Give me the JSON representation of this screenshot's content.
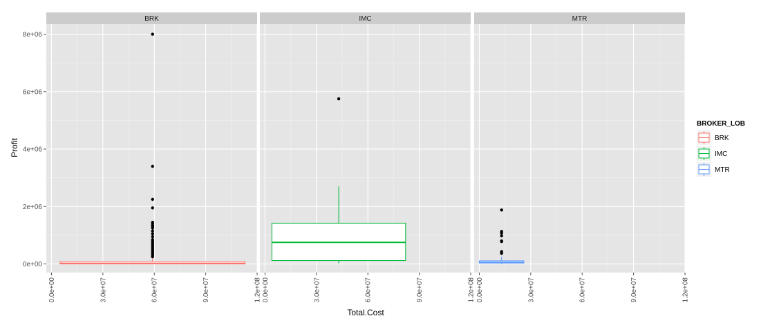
{
  "chart_data": {
    "type": "box",
    "xlabel": "Total.Cost",
    "ylabel": "Profit",
    "xlim": [
      -3000000,
      120000000
    ],
    "ylim": [
      -300000,
      8350000
    ],
    "x_ticks": [
      {
        "value": 0,
        "label": "0.0e+00"
      },
      {
        "value": 30000000,
        "label": "3.0e+07"
      },
      {
        "value": 60000000,
        "label": "6.0e+07"
      },
      {
        "value": 90000000,
        "label": "9.0e+07"
      },
      {
        "value": 120000000,
        "label": "1.2e+08"
      }
    ],
    "y_ticks": [
      {
        "value": 0,
        "label": "0e+00"
      },
      {
        "value": 2000000,
        "label": "2e+06"
      },
      {
        "value": 4000000,
        "label": "4e+06"
      },
      {
        "value": 6000000,
        "label": "6e+06"
      },
      {
        "value": 8000000,
        "label": "8e+06"
      }
    ],
    "legend": {
      "title": "BROKER_LOB",
      "position": "right",
      "items": [
        {
          "label": "BRK",
          "color": "#F8766D"
        },
        {
          "label": "IMC",
          "color": "#00BA38"
        },
        {
          "label": "MTR",
          "color": "#619CFF"
        }
      ]
    },
    "panels": [
      {
        "strip": "BRK",
        "color": "#F8766D",
        "box": {
          "xmin": 5000000,
          "xmax": 113000000,
          "xcenter": 59000000,
          "q1": 0,
          "median": 20000,
          "q3": 90000,
          "whisker_low": 0,
          "whisker_high": 200000
        },
        "outliers": [
          {
            "x": 59000000,
            "y": 8000000
          },
          {
            "x": 59000000,
            "y": 3400000
          },
          {
            "x": 59000000,
            "y": 2250000
          },
          {
            "x": 59000000,
            "y": 1950000
          },
          {
            "x": 59000000,
            "y": 1450000
          },
          {
            "x": 59000000,
            "y": 1400000
          },
          {
            "x": 59000000,
            "y": 1350000
          },
          {
            "x": 59000000,
            "y": 1300000
          },
          {
            "x": 59000000,
            "y": 1250000
          },
          {
            "x": 59000000,
            "y": 1150000
          },
          {
            "x": 59000000,
            "y": 1050000
          },
          {
            "x": 59000000,
            "y": 950000
          },
          {
            "x": 59000000,
            "y": 850000
          },
          {
            "x": 59000000,
            "y": 800000
          },
          {
            "x": 59000000,
            "y": 750000
          },
          {
            "x": 59000000,
            "y": 700000
          },
          {
            "x": 59000000,
            "y": 650000
          },
          {
            "x": 59000000,
            "y": 600000
          },
          {
            "x": 59000000,
            "y": 550000
          },
          {
            "x": 59000000,
            "y": 500000
          },
          {
            "x": 59000000,
            "y": 450000
          },
          {
            "x": 59000000,
            "y": 400000
          },
          {
            "x": 59000000,
            "y": 350000
          },
          {
            "x": 59000000,
            "y": 300000
          },
          {
            "x": 59000000,
            "y": 250000
          }
        ]
      },
      {
        "strip": "IMC",
        "color": "#00BA38",
        "box": {
          "xmin": 4000000,
          "xmax": 82000000,
          "xcenter": 43000000,
          "q1": 120000,
          "median": 750000,
          "q3": 1420000,
          "whisker_low": 20000,
          "whisker_high": 2700000
        },
        "outliers": [
          {
            "x": 43000000,
            "y": 5750000
          }
        ]
      },
      {
        "strip": "MTR",
        "color": "#619CFF",
        "box": {
          "xmin": 0,
          "xmax": 26000000,
          "xcenter": 13000000,
          "q1": 30000,
          "median": 60000,
          "q3": 110000,
          "whisker_low": 0,
          "whisker_high": 250000
        },
        "outliers": [
          {
            "x": 13000000,
            "y": 1880000
          },
          {
            "x": 13000000,
            "y": 1130000
          },
          {
            "x": 13000000,
            "y": 1080000
          },
          {
            "x": 13000000,
            "y": 980000
          },
          {
            "x": 13000000,
            "y": 800000
          },
          {
            "x": 13000000,
            "y": 780000
          },
          {
            "x": 13000000,
            "y": 430000
          },
          {
            "x": 13000000,
            "y": 370000
          }
        ]
      }
    ]
  }
}
